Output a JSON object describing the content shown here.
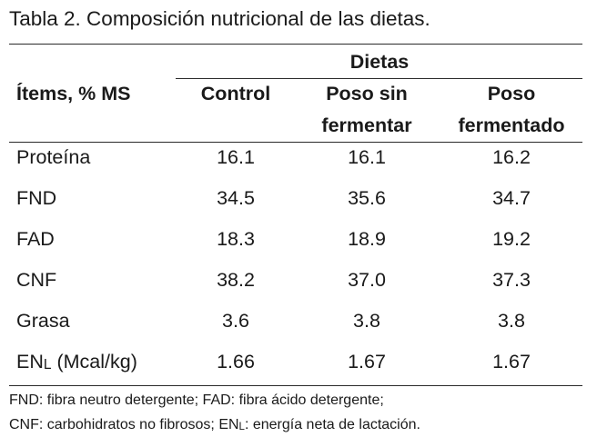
{
  "caption": "Tabla 2. Composición nutricional de las dietas.",
  "header": {
    "group_label": "Dietas",
    "items_label": "Ítems, % MS",
    "columns": [
      {
        "line1": "Control",
        "line2": ""
      },
      {
        "line1": "Poso sin",
        "line2": "fermentar"
      },
      {
        "line1": "Poso",
        "line2": "fermentado"
      }
    ]
  },
  "rows": [
    {
      "label": "Proteína",
      "values": [
        "16.1",
        "16.1",
        "16.2"
      ]
    },
    {
      "label": "FND",
      "values": [
        "34.5",
        "35.6",
        "34.7"
      ]
    },
    {
      "label": "FAD",
      "values": [
        "18.3",
        "18.9",
        "19.2"
      ]
    },
    {
      "label": "CNF",
      "values": [
        "38.2",
        "37.0",
        "37.3"
      ]
    },
    {
      "label": "Grasa",
      "values": [
        "3.6",
        "3.8",
        "3.8"
      ]
    },
    {
      "label_main": "EN",
      "label_sub": "L",
      "label_rest": " (Mcal/kg)",
      "values": [
        "1.66",
        "1.67",
        "1.67"
      ]
    }
  ],
  "footnotes": {
    "line1": "FND: fibra neutro detergente; FAD: fibra ácido detergente;",
    "line2_prefix": "CNF: carbohidratos no fibrosos; EN",
    "line2_sub": "L",
    "line2_suffix": ": energía neta de lactación."
  }
}
